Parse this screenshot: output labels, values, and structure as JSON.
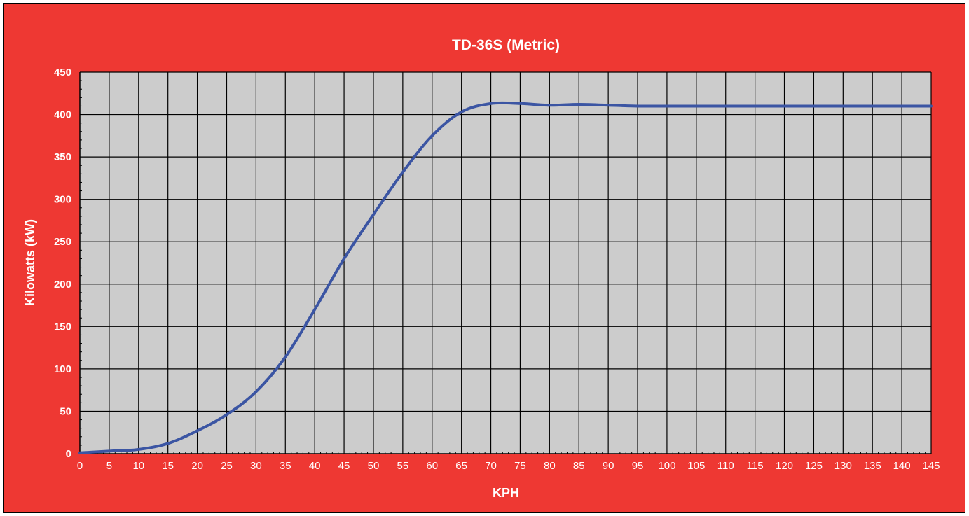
{
  "chart_data": {
    "type": "line",
    "title": "TD-36S (Metric)",
    "xlabel": "KPH",
    "ylabel": "Kilowatts (kW)",
    "xlim": [
      0,
      145
    ],
    "ylim": [
      0,
      450
    ],
    "x_ticks": [
      0,
      5,
      10,
      15,
      20,
      25,
      30,
      35,
      40,
      45,
      50,
      55,
      60,
      65,
      70,
      75,
      80,
      85,
      90,
      95,
      100,
      105,
      110,
      115,
      120,
      125,
      130,
      135,
      140,
      145
    ],
    "y_ticks": [
      0,
      50,
      100,
      150,
      200,
      250,
      300,
      350,
      400,
      450
    ],
    "grid": true,
    "legend": "none",
    "colors": {
      "background": "#ee3833",
      "plot_area": "#cccccc",
      "line": "#3b55a3",
      "grid": "#000000",
      "text": "#ffffff"
    },
    "series": [
      {
        "color": "#3b55a3",
        "x": [
          0,
          5,
          10,
          15,
          20,
          25,
          30,
          35,
          40,
          45,
          50,
          55,
          60,
          65,
          70,
          75,
          80,
          85,
          90,
          95,
          100,
          105,
          110,
          115,
          120,
          125,
          130,
          135,
          140,
          145
        ],
        "y": [
          1,
          3,
          5,
          12,
          27,
          46,
          73,
          114,
          170,
          230,
          282,
          332,
          375,
          403,
          413,
          413,
          411,
          412,
          411,
          410,
          410,
          410,
          410,
          410,
          410,
          410,
          410,
          410,
          410,
          410
        ]
      }
    ]
  }
}
